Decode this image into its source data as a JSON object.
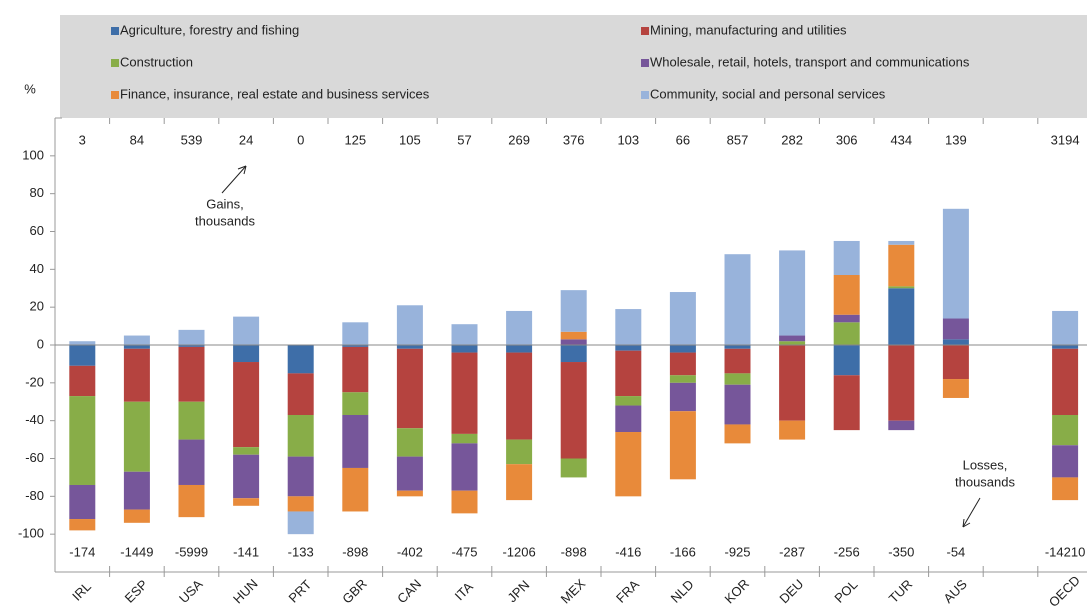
{
  "chart_data": {
    "type": "bar",
    "stacked": true,
    "y_label": "%",
    "categories": [
      "IRL",
      "ESP",
      "USA",
      "HUN",
      "PRT",
      "GBR",
      "CAN",
      "ITA",
      "JPN",
      "MEX",
      "FRA",
      "NLD",
      "KOR",
      "DEU",
      "POL",
      "TUR",
      "AUS",
      null,
      "OECD"
    ],
    "series": [
      {
        "name": "Agriculture, forestry and fishing",
        "color": "#3e6ea8",
        "values": [
          -11,
          -2,
          -1,
          -9,
          -15,
          -1,
          -2,
          -4,
          -4,
          -9,
          -3,
          -4,
          -2,
          0,
          -16,
          30,
          3,
          null,
          -2
        ]
      },
      {
        "name": "Mining, manufacturing and utilities",
        "color": "#b5433f",
        "values": [
          -16,
          -28,
          -29,
          -45,
          -22,
          -24,
          -42,
          -43,
          -46,
          -51,
          -24,
          -12,
          -13,
          -40,
          -29,
          -40,
          -18,
          null,
          -35
        ]
      },
      {
        "name": "Construction",
        "color": "#88ad48",
        "values": [
          -47,
          -37,
          -20,
          -4,
          -22,
          -12,
          -15,
          -5,
          -13,
          -10,
          -5,
          -4,
          -6,
          2,
          12,
          1,
          0,
          null,
          -16
        ]
      },
      {
        "name": "Wholesale, retail, hotels, transport and communications",
        "color": "#76569a",
        "values": [
          -18,
          -20,
          -24,
          -23,
          -21,
          -28,
          -18,
          -25,
          0,
          3,
          -14,
          -15,
          -21,
          3,
          4,
          -5,
          11,
          null,
          -17
        ]
      },
      {
        "name": "Finance, insurance, real estate and business services",
        "color": "#e88a3a",
        "values": [
          -6,
          -7,
          -17,
          -4,
          -8,
          -23,
          -3,
          -12,
          -19,
          4,
          -34,
          -36,
          -10,
          -10,
          21,
          22,
          -10,
          null,
          -12
        ]
      },
      {
        "name": "Community, social and personal services",
        "color": "#98b3db",
        "values": [
          2,
          5,
          8,
          15,
          -12,
          12,
          21,
          11,
          18,
          22,
          19,
          28,
          48,
          45,
          18,
          2,
          58,
          null,
          18
        ]
      }
    ],
    "gains": [
      3,
      84,
      539,
      24,
      0,
      125,
      105,
      57,
      269,
      376,
      103,
      66,
      857,
      282,
      306,
      434,
      139,
      null,
      3194
    ],
    "losses": [
      -174,
      -1449,
      -5999,
      -141,
      -133,
      -898,
      -402,
      -475,
      -1206,
      -898,
      -416,
      -166,
      -925,
      -287,
      -256,
      -350,
      -54,
      null,
      -14210
    ],
    "annotations": [
      [
        "Gains,",
        "thousands"
      ],
      [
        "Losses,",
        "thousands"
      ]
    ],
    "ylim": [
      -120,
      120
    ],
    "yticks": [
      -100,
      -80,
      -60,
      -40,
      -20,
      0,
      20,
      40,
      60,
      80,
      100
    ]
  }
}
